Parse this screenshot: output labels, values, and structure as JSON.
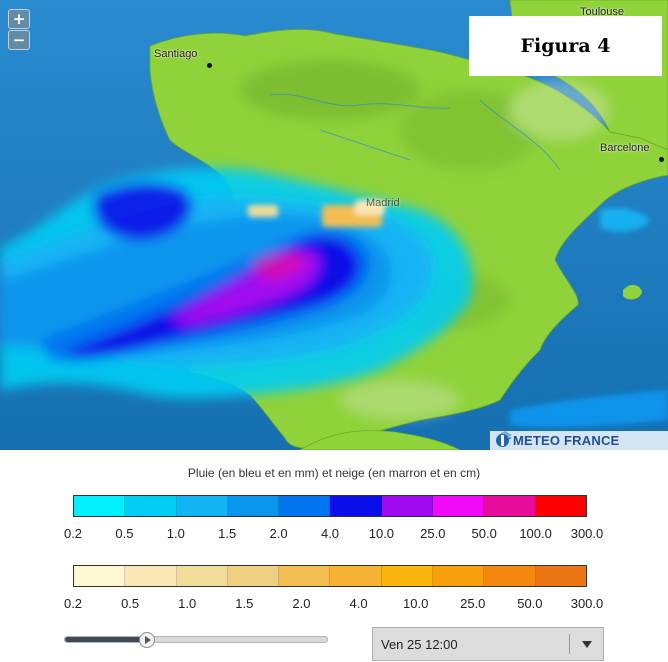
{
  "map": {
    "figure_label": "Figura 4",
    "zoom_in_label": "+",
    "zoom_out_label": "−",
    "cities": [
      {
        "name": "Santiago",
        "type": "city"
      },
      {
        "name": "Madrid",
        "type": "city"
      },
      {
        "name": "Barcelone",
        "type": "city"
      },
      {
        "name": "Toulouse",
        "type": "city"
      }
    ],
    "provider_logo_text": "METEO FRANCE",
    "colors": {
      "sea": "#1a7bbd",
      "land": "#8fd23a"
    }
  },
  "legend": {
    "title": "Pluie (en bleu et en mm) et neige (en marron et en cm)",
    "rain": {
      "colors": [
        "#00f0ff",
        "#00cdf4",
        "#12b4f4",
        "#0a96ee",
        "#0276f0",
        "#0a0ee8",
        "#a00af0",
        "#f00af8",
        "#e80c9c",
        "#ff0000"
      ],
      "ticks": [
        "0.2",
        "0.5",
        "1.0",
        "1.5",
        "2.0",
        "4.0",
        "10.0",
        "25.0",
        "50.0",
        "100.0",
        "300.0"
      ]
    },
    "snow": {
      "colors": [
        "#fef7d0",
        "#fbe7b6",
        "#f2dc9a",
        "#f1cf80",
        "#f3bd52",
        "#f6b232",
        "#fcb50a",
        "#f89f0c",
        "#f2890c",
        "#ec7614"
      ],
      "ticks": [
        "0.2",
        "0.5",
        "1.0",
        "1.5",
        "2.0",
        "4.0",
        "10.0",
        "25.0",
        "50.0",
        "300.0"
      ]
    }
  },
  "controls": {
    "timeline_progress": 0.31,
    "time_select_value": "Ven 25 12:00"
  }
}
